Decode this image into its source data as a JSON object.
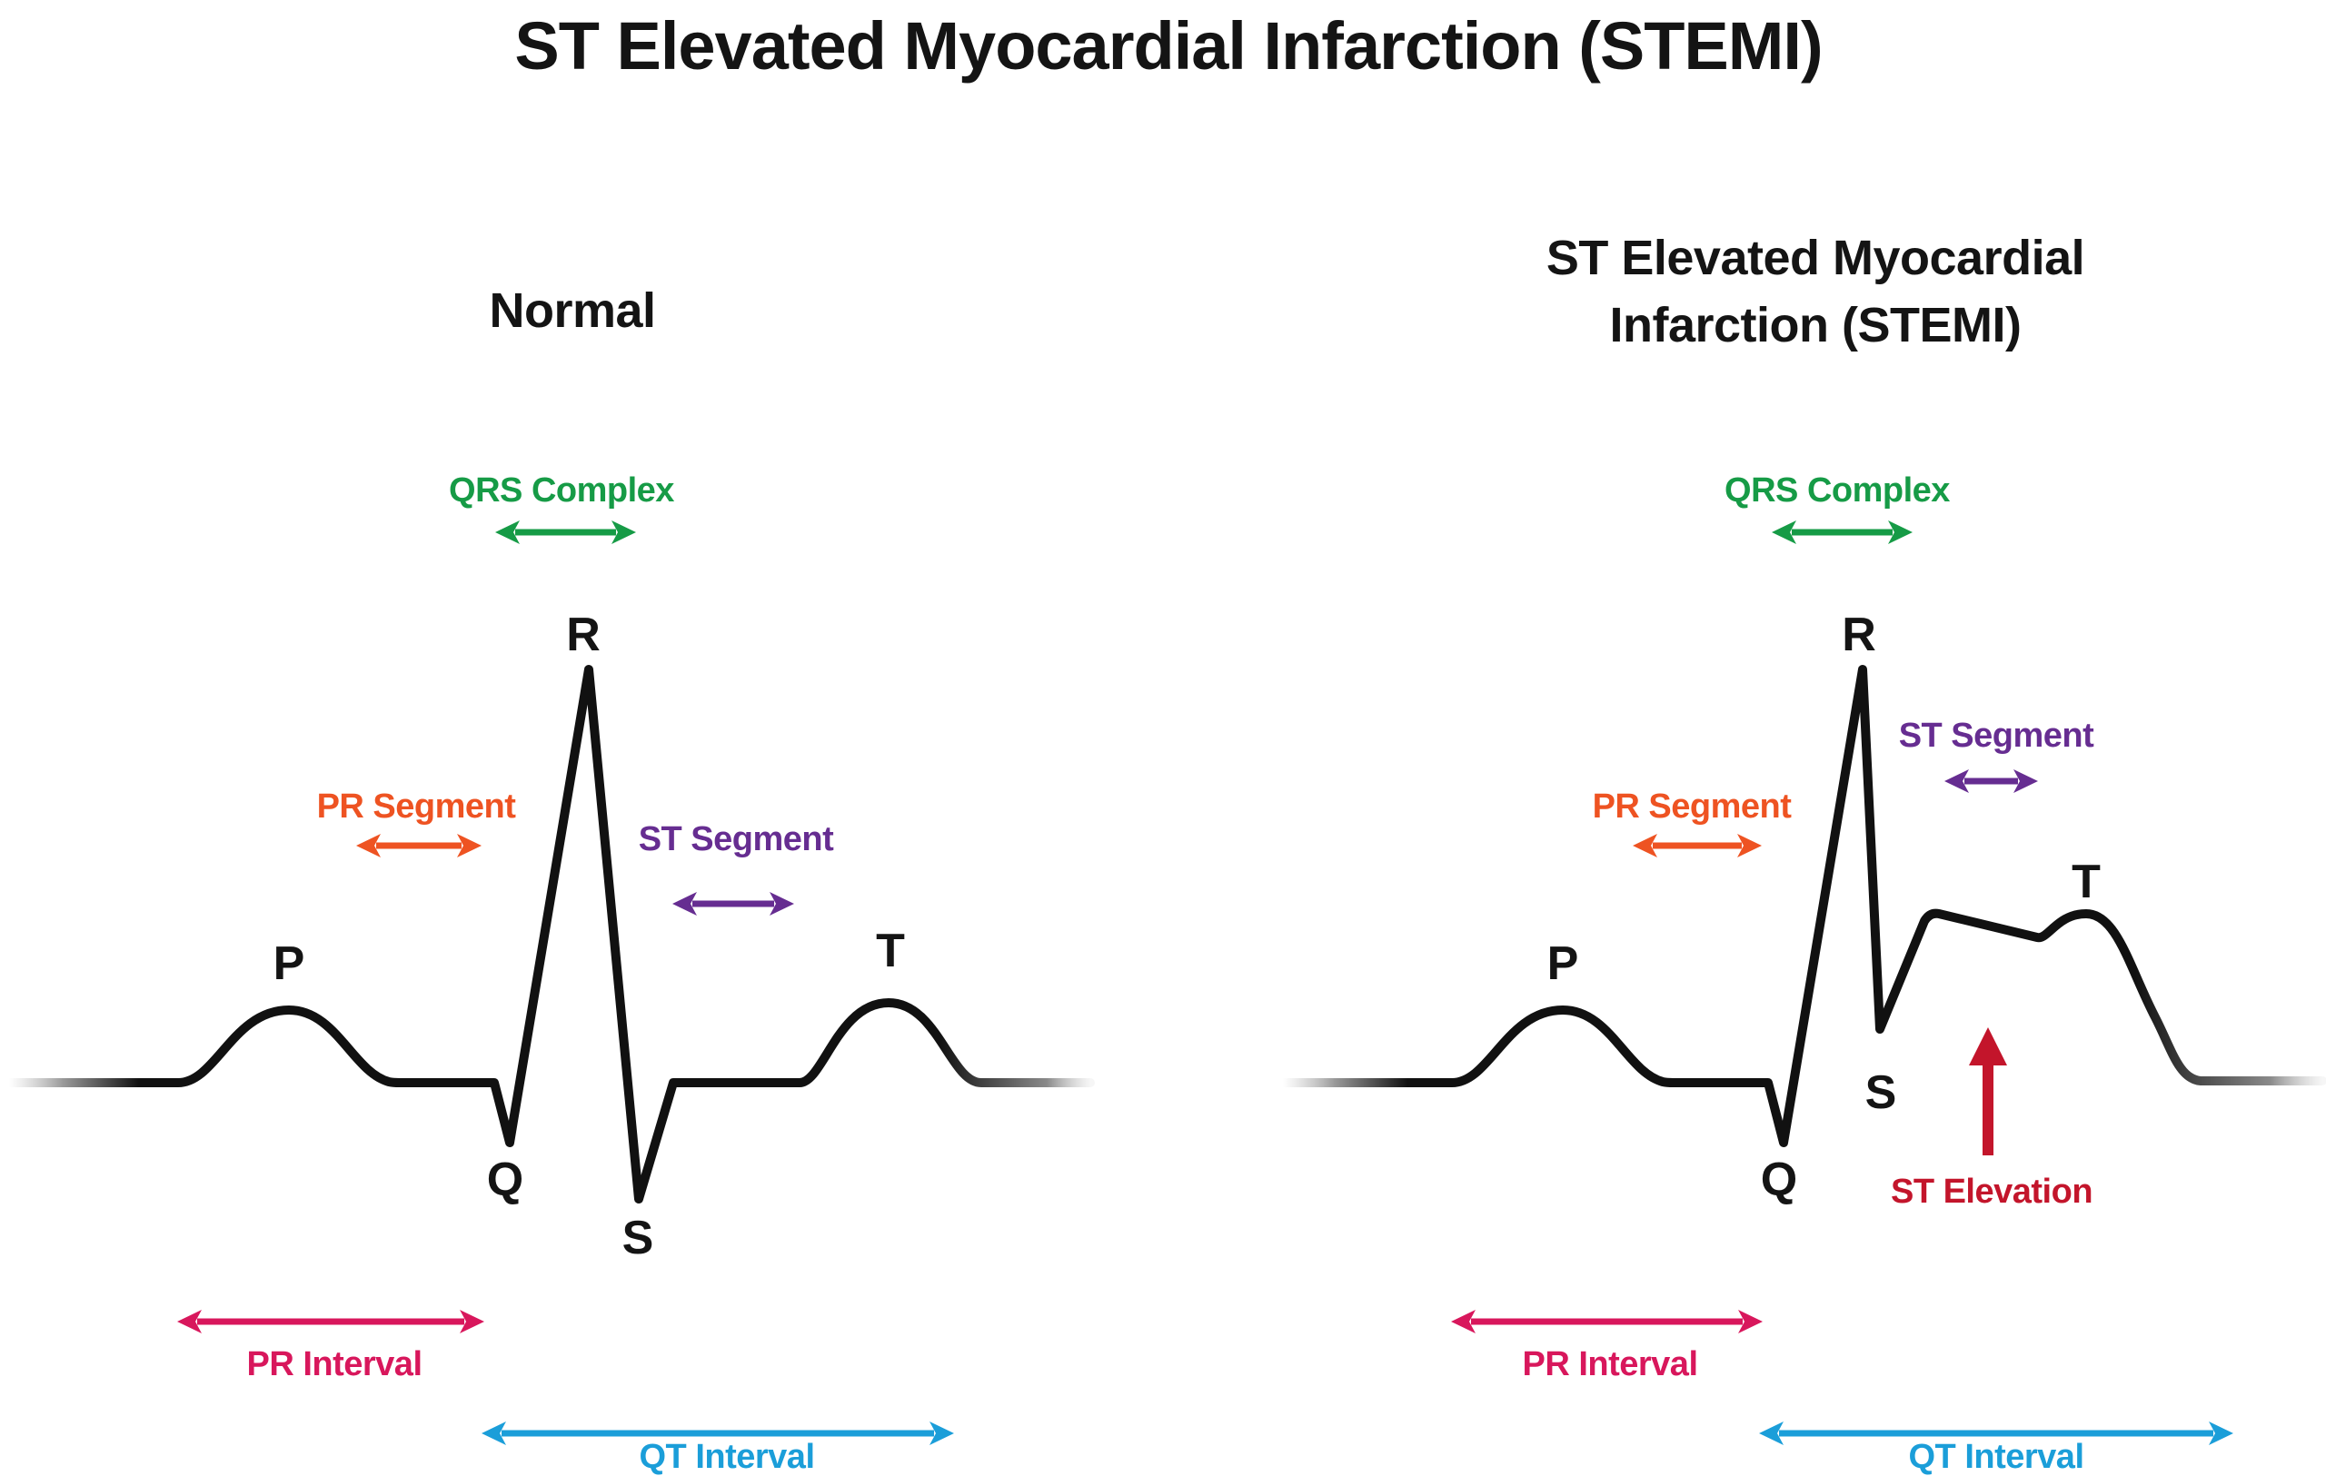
{
  "title": "ST Elevated Myocardial Infarction (STEMI)",
  "panels": {
    "normal": {
      "title": "Normal"
    },
    "stemi": {
      "title_line1": "ST Elevated Myocardial",
      "title_line2": "Infarction (STEMI)"
    }
  },
  "wave_points": {
    "p": "P",
    "q": "Q",
    "r": "R",
    "s": "S",
    "t": "T"
  },
  "labels": {
    "qrs_complex": "QRS Complex",
    "pr_segment": "PR Segment",
    "st_segment": "ST Segment",
    "pr_interval": "PR Interval",
    "qt_interval": "QT Interval",
    "st_elevation": "ST Elevation"
  },
  "colors": {
    "text": "#141414",
    "waveform": "#111111",
    "qrs_complex": "#169b46",
    "pr_segment": "#ee5322",
    "st_segment": "#662d91",
    "pr_interval": "#d8175c",
    "qt_interval": "#1b9ed9",
    "st_elevation": "#c3152b"
  }
}
